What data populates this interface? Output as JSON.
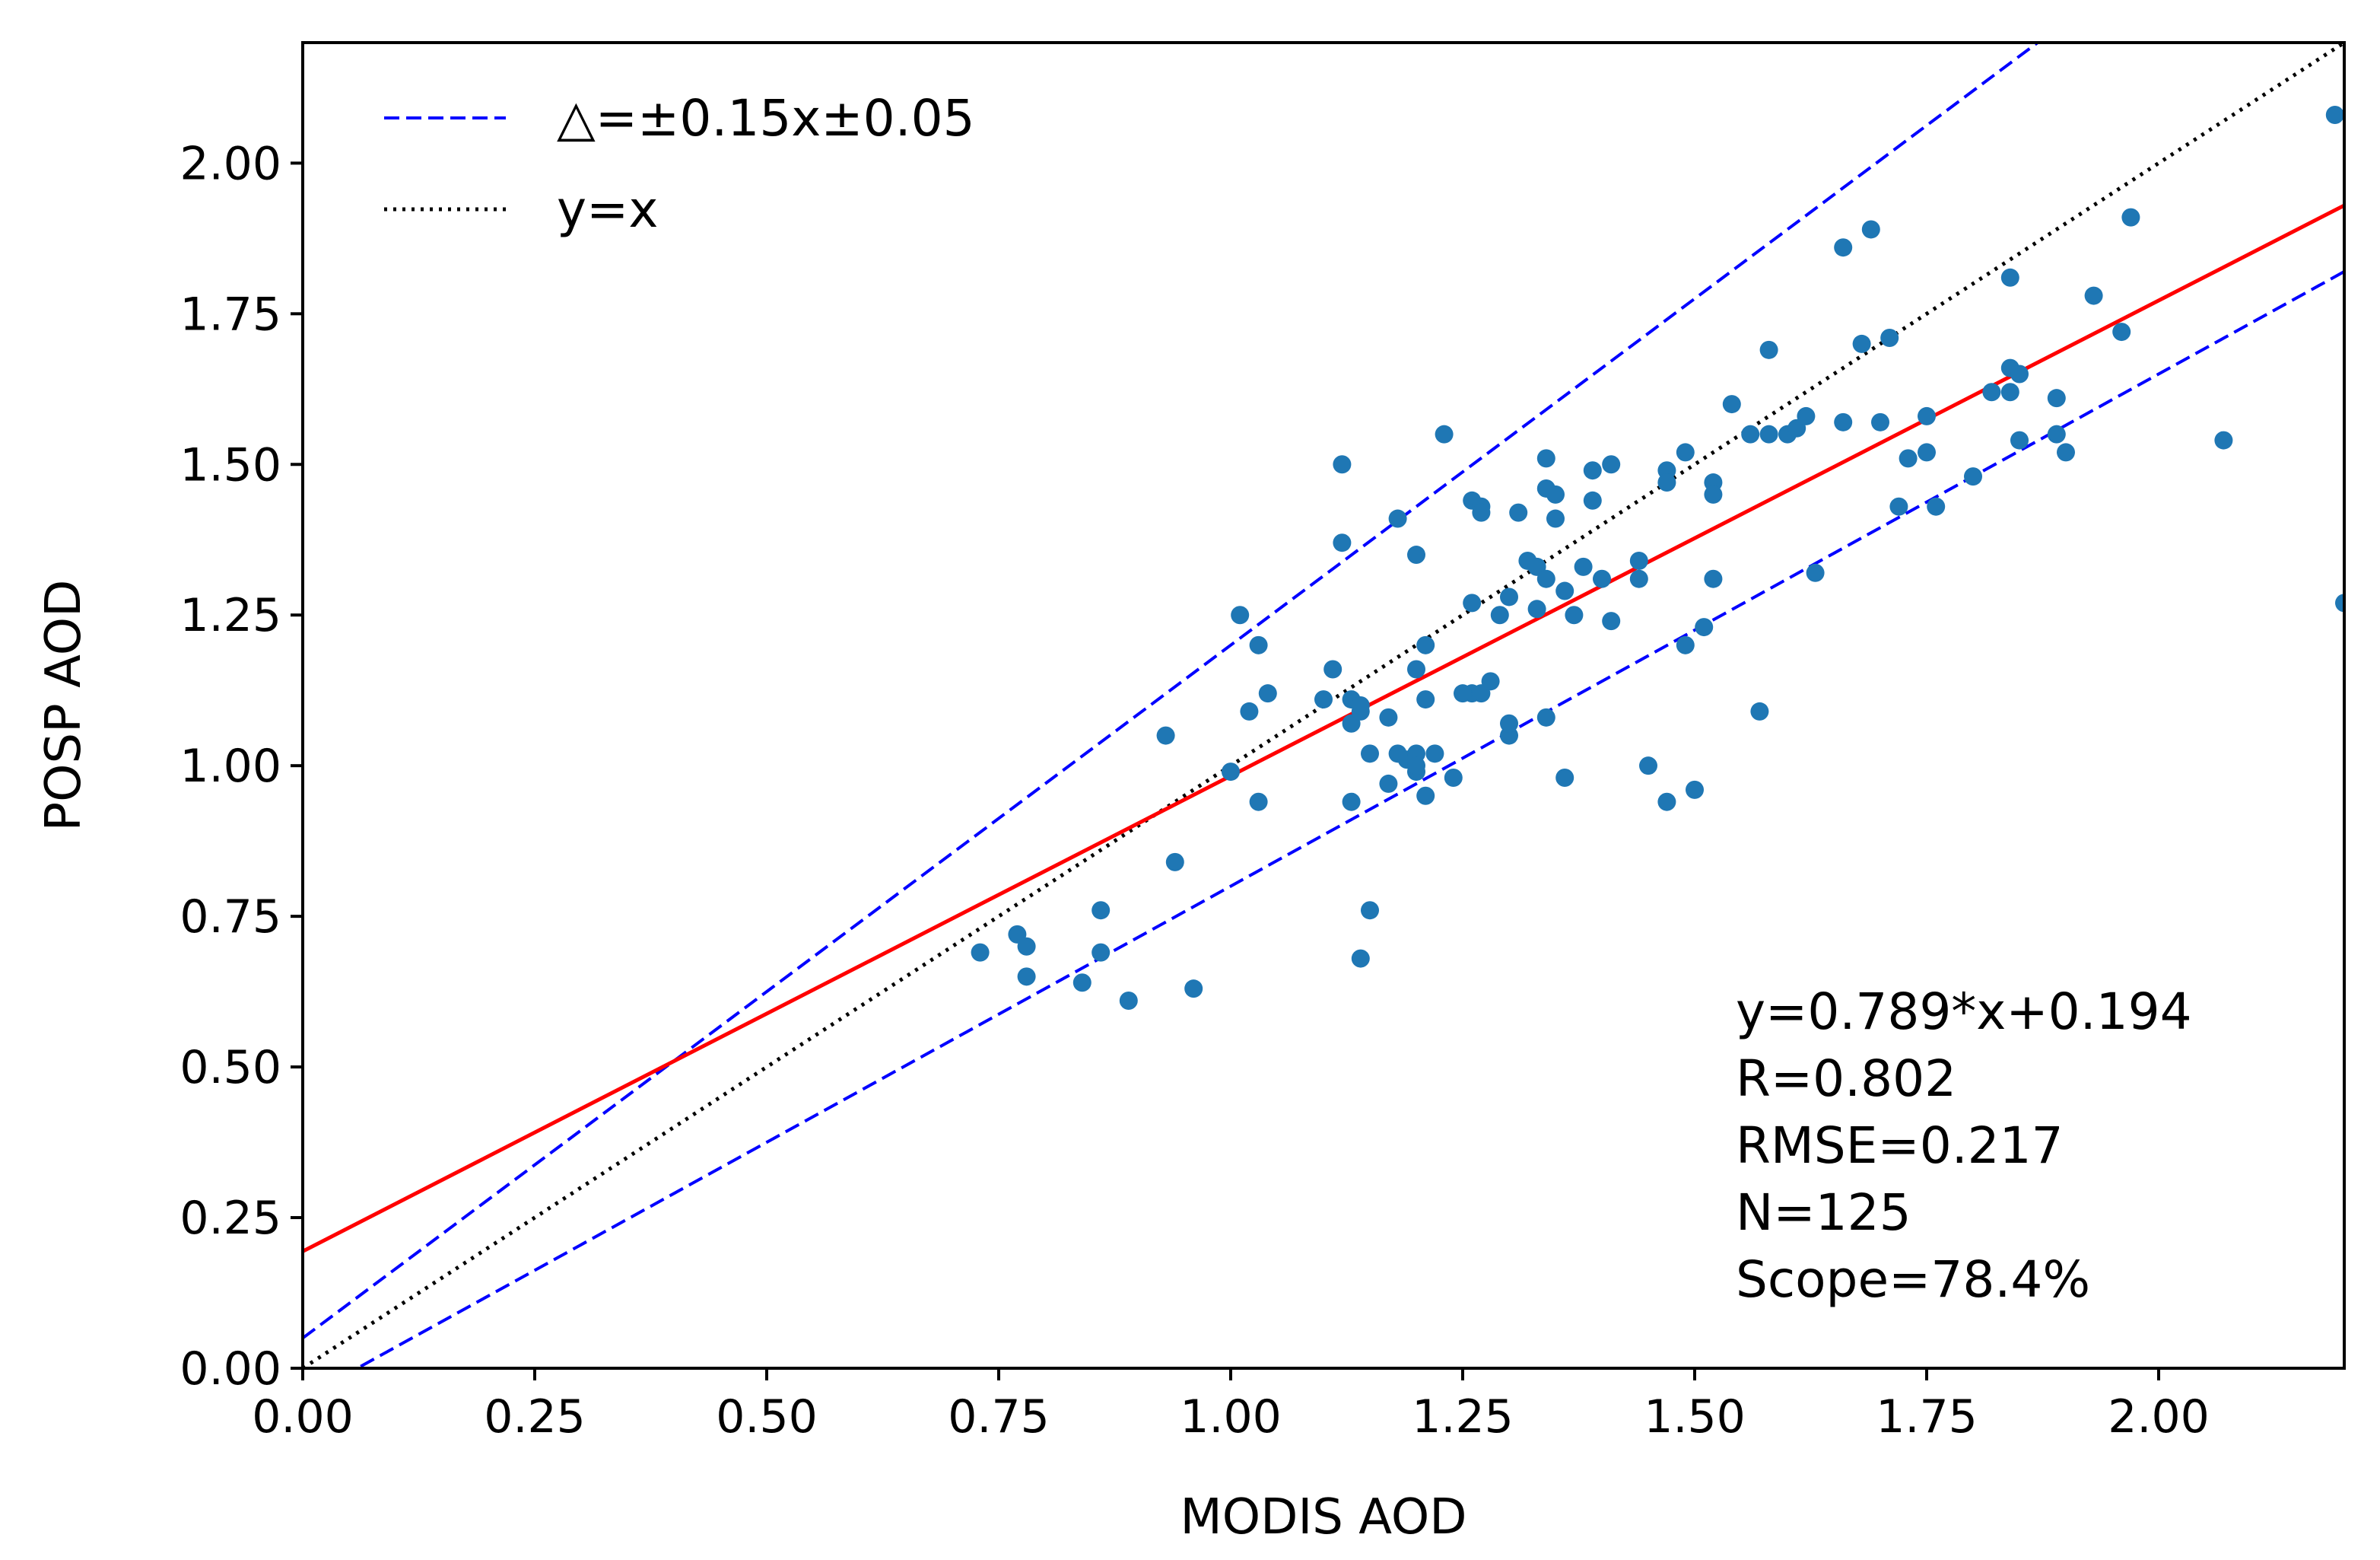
{
  "chart_data": {
    "type": "scatter",
    "xlabel": "MODIS AOD",
    "ylabel": "POSP AOD",
    "xlim": [
      0,
      2.2
    ],
    "ylim": [
      0,
      2.2
    ],
    "xticks": [
      0,
      0.25,
      0.5,
      0.75,
      1.0,
      1.25,
      1.5,
      1.75,
      2.0
    ],
    "yticks": [
      0,
      0.25,
      0.5,
      0.75,
      1.0,
      1.25,
      1.5,
      1.75,
      2.0
    ],
    "xtick_labels": [
      "0.00",
      "0.25",
      "0.50",
      "0.75",
      "1.00",
      "1.25",
      "1.50",
      "1.75",
      "2.00"
    ],
    "ytick_labels": [
      "0.00",
      "0.25",
      "0.50",
      "0.75",
      "1.00",
      "1.25",
      "1.50",
      "1.75",
      "2.00"
    ],
    "grid": false,
    "legend": {
      "placement": "upper-left",
      "entries": [
        {
          "label": "△=±0.15x±0.05",
          "style": "dashed",
          "color": "#0000ff"
        },
        {
          "label": "y=x",
          "style": "dotted",
          "color": "#000000"
        }
      ]
    },
    "reference_lines": {
      "one_to_one": {
        "slope": 1,
        "intercept": 0,
        "color": "#000000"
      },
      "envelope_upper": {
        "slope": 1.15,
        "intercept": 0.05,
        "color": "#0000ff"
      },
      "envelope_lower": {
        "slope": 0.85,
        "intercept": -0.05,
        "color": "#0000ff"
      },
      "fit": {
        "slope": 0.789,
        "intercept": 0.194,
        "color": "#ff0000"
      }
    },
    "point_color": "#1f77b4",
    "annotations": [
      "y=0.789*x+0.194",
      "R=0.802",
      "RMSE=0.217",
      "N=125",
      "Scope=78.4%"
    ],
    "points": [
      [
        0.73,
        0.69
      ],
      [
        0.77,
        0.72
      ],
      [
        0.78,
        0.7
      ],
      [
        0.78,
        0.65
      ],
      [
        0.84,
        0.64
      ],
      [
        0.86,
        0.69
      ],
      [
        0.86,
        0.76
      ],
      [
        0.89,
        0.61
      ],
      [
        0.94,
        0.84
      ],
      [
        0.93,
        1.05
      ],
      [
        0.96,
        0.63
      ],
      [
        1.0,
        0.99
      ],
      [
        1.01,
        1.25
      ],
      [
        1.02,
        1.09
      ],
      [
        1.03,
        1.2
      ],
      [
        1.04,
        1.12
      ],
      [
        1.03,
        0.94
      ],
      [
        1.1,
        1.11
      ],
      [
        1.11,
        1.16
      ],
      [
        1.12,
        1.37
      ],
      [
        1.12,
        1.5
      ],
      [
        1.13,
        1.11
      ],
      [
        1.13,
        1.07
      ],
      [
        1.13,
        0.94
      ],
      [
        1.14,
        1.09
      ],
      [
        1.14,
        0.68
      ],
      [
        1.15,
        0.76
      ],
      [
        1.15,
        1.02
      ],
      [
        1.17,
        0.97
      ],
      [
        1.17,
        1.08
      ],
      [
        1.18,
        1.41
      ],
      [
        1.18,
        1.02
      ],
      [
        1.19,
        1.01
      ],
      [
        1.2,
        1.35
      ],
      [
        1.2,
        0.99
      ],
      [
        1.2,
        1.02
      ],
      [
        1.2,
        1.16
      ],
      [
        1.21,
        1.2
      ],
      [
        1.21,
        1.11
      ],
      [
        1.21,
        0.95
      ],
      [
        1.22,
        1.02
      ],
      [
        1.23,
        1.55
      ],
      [
        1.24,
        0.98
      ],
      [
        1.26,
        1.44
      ],
      [
        1.26,
        1.27
      ],
      [
        1.26,
        1.12
      ],
      [
        1.27,
        1.43
      ],
      [
        1.27,
        1.42
      ],
      [
        1.27,
        1.12
      ],
      [
        1.28,
        1.14
      ],
      [
        1.29,
        1.25
      ],
      [
        1.3,
        1.28
      ],
      [
        1.3,
        1.05
      ],
      [
        1.3,
        1.07
      ],
      [
        1.31,
        1.42
      ],
      [
        1.32,
        1.34
      ],
      [
        1.33,
        1.33
      ],
      [
        1.33,
        1.26
      ],
      [
        1.34,
        1.51
      ],
      [
        1.34,
        1.46
      ],
      [
        1.34,
        1.31
      ],
      [
        1.34,
        1.08
      ],
      [
        1.35,
        1.45
      ],
      [
        1.35,
        1.41
      ],
      [
        1.36,
        1.29
      ],
      [
        1.36,
        0.98
      ],
      [
        1.37,
        1.25
      ],
      [
        1.38,
        1.33
      ],
      [
        1.39,
        1.44
      ],
      [
        1.39,
        1.49
      ],
      [
        1.4,
        1.31
      ],
      [
        1.41,
        1.5
      ],
      [
        1.41,
        1.24
      ],
      [
        1.44,
        1.34
      ],
      [
        1.44,
        1.31
      ],
      [
        1.45,
        1.0
      ],
      [
        1.47,
        1.49
      ],
      [
        1.47,
        1.47
      ],
      [
        1.47,
        0.94
      ],
      [
        1.49,
        1.52
      ],
      [
        1.49,
        1.2
      ],
      [
        1.5,
        0.96
      ],
      [
        1.51,
        1.23
      ],
      [
        1.52,
        1.47
      ],
      [
        1.52,
        1.45
      ],
      [
        1.52,
        1.31
      ],
      [
        1.54,
        1.6
      ],
      [
        1.56,
        1.55
      ],
      [
        1.57,
        1.09
      ],
      [
        1.58,
        1.69
      ],
      [
        1.58,
        1.55
      ],
      [
        1.6,
        1.55
      ],
      [
        1.61,
        1.56
      ],
      [
        1.62,
        1.58
      ],
      [
        1.63,
        1.32
      ],
      [
        1.66,
        1.86
      ],
      [
        1.66,
        1.57
      ],
      [
        1.68,
        1.7
      ],
      [
        1.69,
        1.89
      ],
      [
        1.7,
        1.57
      ],
      [
        1.71,
        1.71
      ],
      [
        1.72,
        1.43
      ],
      [
        1.73,
        1.51
      ],
      [
        1.75,
        1.52
      ],
      [
        1.75,
        1.58
      ],
      [
        1.76,
        1.43
      ],
      [
        1.8,
        1.48
      ],
      [
        1.82,
        1.62
      ],
      [
        1.84,
        1.66
      ],
      [
        1.84,
        1.62
      ],
      [
        1.84,
        1.81
      ],
      [
        1.85,
        1.65
      ],
      [
        1.85,
        1.54
      ],
      [
        1.89,
        1.55
      ],
      [
        1.89,
        1.61
      ],
      [
        1.9,
        1.52
      ],
      [
        1.93,
        1.78
      ],
      [
        1.96,
        1.72
      ],
      [
        1.97,
        1.91
      ],
      [
        2.07,
        1.54
      ],
      [
        2.19,
        2.08
      ],
      [
        2.2,
        1.27
      ],
      [
        1.2,
        1.0
      ],
      [
        1.25,
        1.12
      ],
      [
        1.14,
        1.1
      ]
    ]
  }
}
